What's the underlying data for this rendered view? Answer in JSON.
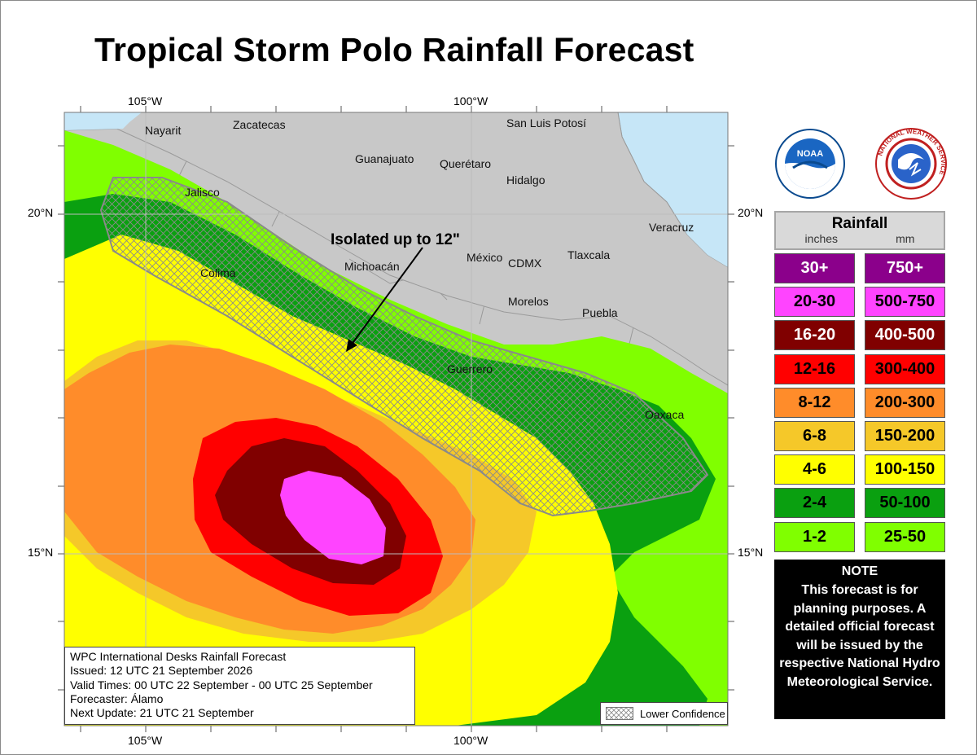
{
  "title": "Tropical Storm Polo Rainfall Forecast",
  "axes": {
    "top_lon": [
      "105°W",
      "100°W"
    ],
    "bottom_lon": [
      "105°W",
      "100°W"
    ],
    "left_lat": [
      "20°N",
      "15°N"
    ],
    "right_lat": [
      "20°N",
      "15°N"
    ]
  },
  "places": [
    "Nayarit",
    "Zacatecas",
    "San Luis Potosí",
    "Guanajuato",
    "Querétaro",
    "Hidalgo",
    "Jalisco",
    "Veracruz",
    "Colima",
    "Michoacán",
    "México",
    "CDMX",
    "Tlaxcala",
    "Morelos",
    "Puebla",
    "Guerrero",
    "Oaxaca"
  ],
  "callout": "Isolated up to 12\"",
  "info_box": {
    "line1": "WPC International Desks Rainfall Forecast",
    "line2": "Issued: 12 UTC 21 September 2026",
    "line3": "Valid Times: 00 UTC 22 September - 00 UTC 25 September",
    "line4": "Forecaster: Álamo",
    "line5": "Next Update: 21 UTC 21 September"
  },
  "lower_confidence_label": "Lower Confidence",
  "legend": {
    "title": "Rainfall",
    "unit_in": "inches",
    "unit_mm": "mm",
    "rows": [
      {
        "inches": "30+",
        "mm": "750+",
        "color": "#8b008b"
      },
      {
        "inches": "20-30",
        "mm": "500-750",
        "color": "#ff44ff"
      },
      {
        "inches": "16-20",
        "mm": "400-500",
        "color": "#800000"
      },
      {
        "inches": "12-16",
        "mm": "300-400",
        "color": "#ff0000"
      },
      {
        "inches": "8-12",
        "mm": "200-300",
        "color": "#ff8c2a"
      },
      {
        "inches": "6-8",
        "mm": "150-200",
        "color": "#f5c829"
      },
      {
        "inches": "4-6",
        "mm": "100-150",
        "color": "#ffff00"
      },
      {
        "inches": "2-4",
        "mm": "50-100",
        "color": "#0aa010"
      },
      {
        "inches": "1-2",
        "mm": "25-50",
        "color": "#80ff00"
      }
    ]
  },
  "note": {
    "title": "NOTE",
    "body": "This forecast is for planning purposes. A detailed official forecast will be issued by the respective National Hydro Meteorological Service."
  },
  "logos": {
    "noaa_text": "NOAA",
    "nws_ring_text": "NATIONAL WEATHER SERVICE"
  }
}
